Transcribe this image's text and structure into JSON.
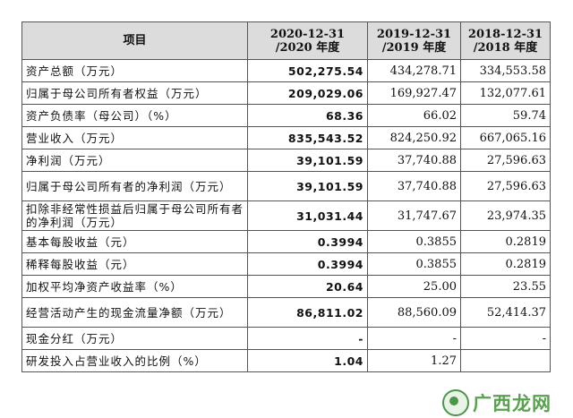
{
  "table": {
    "headers": [
      "项目",
      "2020-12-31\n/2020 年度",
      "2019-12-31\n/2019 年度",
      "2018-12-31\n/2018 年度"
    ],
    "rows": [
      {
        "label": "资产总额（万元）",
        "v2020": "502,275.54",
        "v2019": "434,278.71",
        "v2018": "334,553.58"
      },
      {
        "label": "归属于母公司所有者权益（万元）",
        "v2020": "209,029.06",
        "v2019": "169,927.47",
        "v2018": "132,077.61"
      },
      {
        "label": "资产负债率（母公司）（%）",
        "v2020": "68.36",
        "v2019": "66.02",
        "v2018": "59.74"
      },
      {
        "label": "营业收入（万元）",
        "v2020": "835,543.52",
        "v2019": "824,250.92",
        "v2018": "667,065.16"
      },
      {
        "label": "净利润（万元）",
        "v2020": "39,101.59",
        "v2019": "37,740.88",
        "v2018": "27,596.63"
      },
      {
        "label": "归属于母公司所有者的净利润（万元）",
        "v2020": "39,101.59",
        "v2019": "37,740.88",
        "v2018": "27,596.63"
      },
      {
        "label": "扣除非经常性损益后归属于母公司所有者的净利润（万元）",
        "v2020": "31,031.44",
        "v2019": "31,747.67",
        "v2018": "23,974.35"
      },
      {
        "label": "基本每股收益（元）",
        "v2020": "0.3994",
        "v2019": "0.3855",
        "v2018": "0.2819"
      },
      {
        "label": "稀释每股收益（元）",
        "v2020": "0.3994",
        "v2019": "0.3855",
        "v2018": "0.2819"
      },
      {
        "label": "加权平均净资产收益率（%）",
        "v2020": "20.64",
        "v2019": "25.00",
        "v2018": "23.55"
      },
      {
        "label": "经营活动产生的现金流量净额（万元）",
        "v2020": "86,811.02",
        "v2019": "88,560.09",
        "v2018": "52,414.37"
      },
      {
        "label": "现金分红（万元）",
        "v2020": "-",
        "v2019": "-",
        "v2018": "-"
      },
      {
        "label": "研发投入占营业收入的比例（%）",
        "v2020": "1.04",
        "v2019": "1.27",
        "v2018": ""
      }
    ]
  },
  "watermark": {
    "text": "广西龙网"
  }
}
